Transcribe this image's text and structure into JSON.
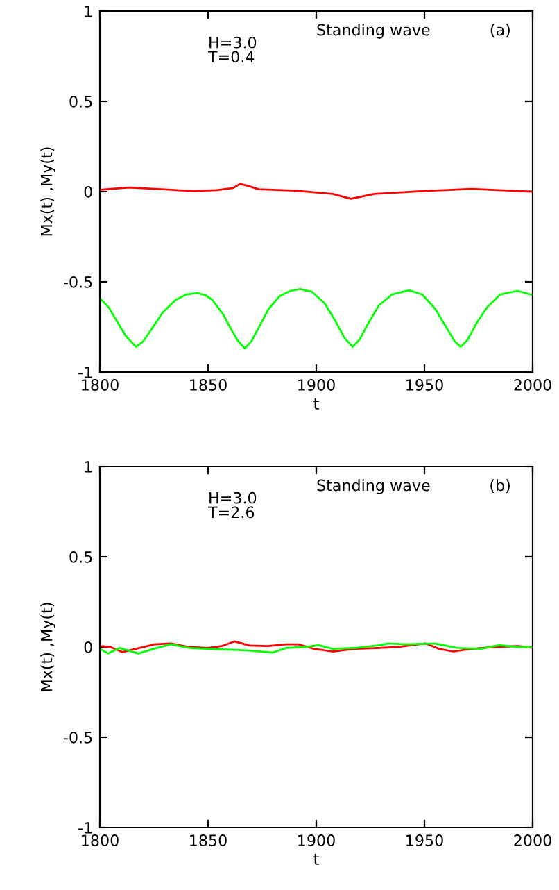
{
  "chart_data": [
    {
      "type": "line",
      "xlabel": "t",
      "ylabel": "Mx(t) ,My(t)",
      "annotations": [
        "H=3.0\nT=0.4",
        "Standing wave",
        "(a)"
      ],
      "xlim": [
        1800,
        2000
      ],
      "ylim": [
        -1,
        1
      ],
      "xticks": [
        1800,
        1850,
        1900,
        1950,
        2000
      ],
      "yticks": [
        -1,
        -0.5,
        0,
        0.5,
        1
      ],
      "grid": false,
      "legend": false,
      "marker": "none",
      "line_style": "solid",
      "series": [
        {
          "color": "#ff0000",
          "x": [
            1800,
            1813.5,
            1843,
            1854,
            1861.6,
            1864.8,
            1868,
            1873.4,
            1890.5,
            1907.6,
            1916,
            1926.8,
            1950,
            1971.8,
            2000
          ],
          "values": [
            0.01,
            0.023,
            0.003,
            0.008,
            0.02,
            0.043,
            0.033,
            0.013,
            0.005,
            -0.013,
            -0.04,
            -0.013,
            0.003,
            0.015,
            0
          ]
        },
        {
          "color": "#00ff00",
          "x": [
            1800,
            1804,
            1808,
            1812,
            1816.7,
            1820,
            1824,
            1829,
            1835,
            1840,
            1845,
            1849,
            1852,
            1857,
            1861,
            1864,
            1867,
            1870,
            1874,
            1878,
            1883,
            1888,
            1892.6,
            1898,
            1904,
            1909,
            1913,
            1916.8,
            1920,
            1924,
            1929,
            1935,
            1943,
            1949,
            1955,
            1960,
            1964,
            1966.8,
            1970,
            1974,
            1979,
            1985,
            1993,
            2000
          ],
          "values": [
            -0.59,
            -0.64,
            -0.72,
            -0.8,
            -0.86,
            -0.83,
            -0.76,
            -0.67,
            -0.6,
            -0.57,
            -0.562,
            -0.575,
            -0.6,
            -0.68,
            -0.77,
            -0.83,
            -0.868,
            -0.83,
            -0.74,
            -0.65,
            -0.58,
            -0.55,
            -0.54,
            -0.555,
            -0.62,
            -0.72,
            -0.81,
            -0.86,
            -0.82,
            -0.73,
            -0.63,
            -0.57,
            -0.547,
            -0.57,
            -0.65,
            -0.75,
            -0.83,
            -0.86,
            -0.82,
            -0.73,
            -0.64,
            -0.57,
            -0.55,
            -0.573
          ]
        }
      ]
    },
    {
      "type": "line",
      "xlabel": "t",
      "ylabel": "Mx(t) ,My(t)",
      "annotations": [
        "H=3.0\nT=2.6",
        "Standing wave",
        "(b)"
      ],
      "xlim": [
        1800,
        2000
      ],
      "ylim": [
        -1,
        1
      ],
      "xticks": [
        1800,
        1850,
        1900,
        1950,
        2000
      ],
      "yticks": [
        -1,
        -0.5,
        0,
        0.5,
        1
      ],
      "grid": false,
      "legend": false,
      "marker": "none",
      "line_style": "solid",
      "series": [
        {
          "color": "#ff0000",
          "x": [
            1800,
            1804.9,
            1810.3,
            1816.7,
            1825.2,
            1832.7,
            1841.3,
            1849.8,
            1856.3,
            1862.2,
            1869.1,
            1877.6,
            1886.2,
            1891.6,
            1899,
            1907.6,
            1918.3,
            1929.2,
            1937.5,
            1944,
            1950.4,
            1956.8,
            1963.2,
            1971.8,
            1982.5,
            1993.2,
            2000
          ],
          "values": [
            0.005,
            0,
            -0.028,
            -0.01,
            0.015,
            0.02,
            0,
            -0.005,
            0.005,
            0.031,
            0.008,
            0.005,
            0.015,
            0.015,
            -0.01,
            -0.025,
            -0.01,
            -0.005,
            0,
            0.01,
            0.02,
            -0.01,
            -0.025,
            -0.01,
            0,
            0.005,
            -0.005
          ]
        },
        {
          "color": "#00ff00",
          "x": [
            1800,
            1803.9,
            1809.2,
            1817.8,
            1826.3,
            1832.7,
            1841.3,
            1849.8,
            1860.5,
            1869.1,
            1879.8,
            1886.2,
            1894.8,
            1901.2,
            1907.6,
            1918.3,
            1929.2,
            1933.3,
            1941.8,
            1954.7,
            1965.3,
            1976,
            1984.6,
            1993.2,
            2000
          ],
          "values": [
            -0.01,
            -0.036,
            -0.005,
            -0.036,
            -0.005,
            0.015,
            -0.005,
            -0.01,
            -0.015,
            -0.02,
            -0.031,
            -0.005,
            0,
            0.01,
            -0.01,
            -0.005,
            0.01,
            0.02,
            0.015,
            0.02,
            -0.005,
            -0.01,
            0.01,
            0,
            0
          ]
        }
      ]
    }
  ]
}
